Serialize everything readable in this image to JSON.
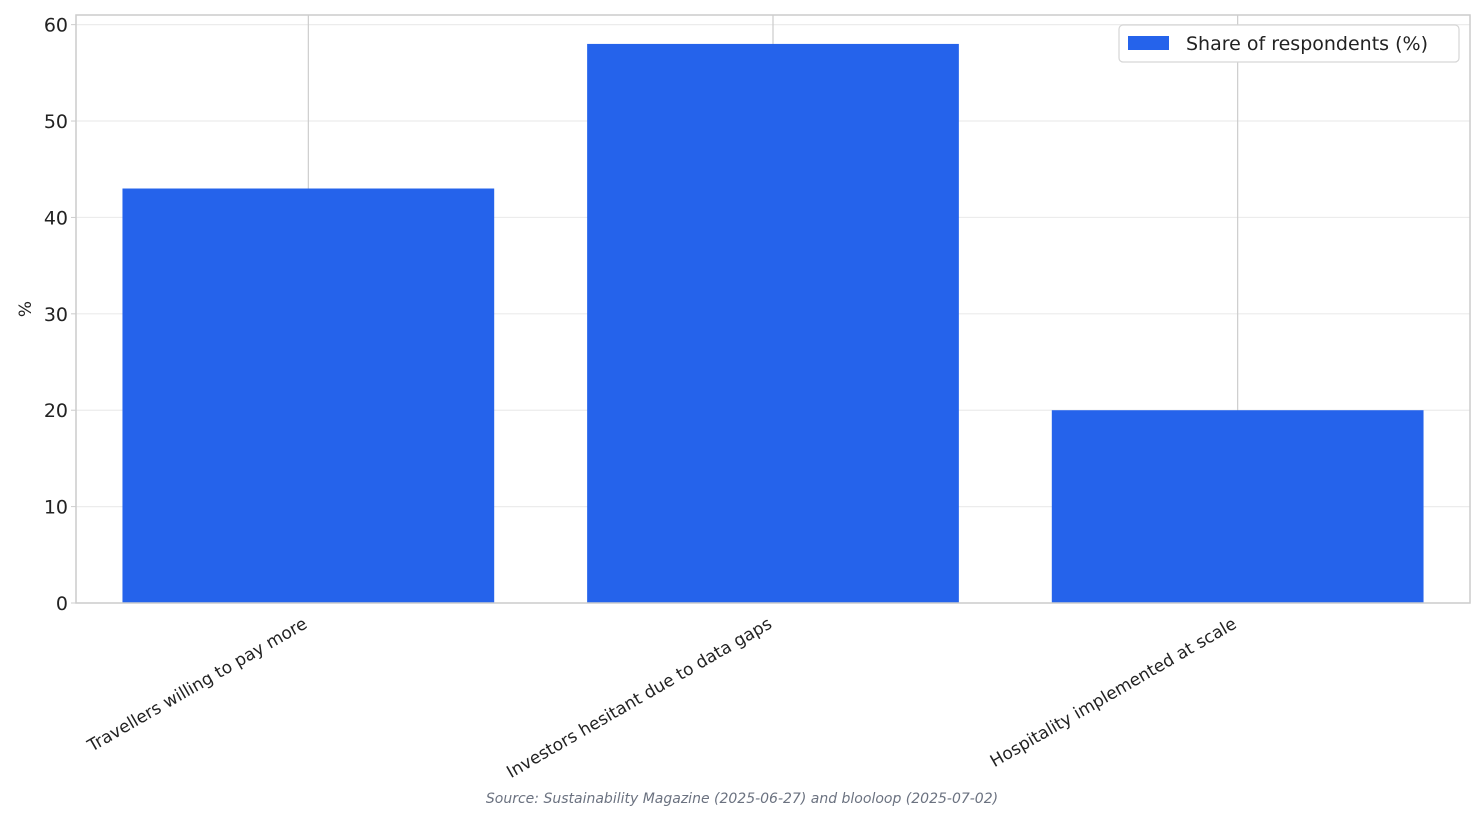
{
  "chart_data": {
    "type": "bar",
    "categories": [
      "Travellers willing to pay more",
      "Investors hesitant due to data gaps",
      "Hospitality implemented at scale"
    ],
    "series": [
      {
        "name": "Share of respondents (%)",
        "values": [
          43,
          58,
          20
        ]
      }
    ],
    "title": "",
    "xlabel": "",
    "ylabel": "%",
    "ylim": [
      0,
      61
    ],
    "yticks": [
      0,
      10,
      20,
      30,
      40,
      50,
      60
    ],
    "grid": true,
    "legend_position": "top-right",
    "bar_color": "#2563eb"
  },
  "source": "Source: Sustainability Magazine (2025-06-27) and blooloop (2025-07-02)"
}
